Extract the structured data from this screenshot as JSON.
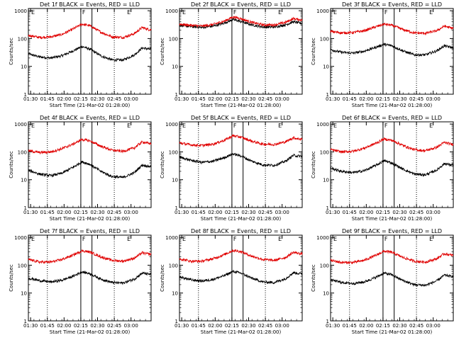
{
  "colors": {
    "events": "#000000",
    "lld": "#e00000",
    "axis": "#000000"
  },
  "panel_common": {
    "ylabel": "Counts/sec",
    "xlabel": "Start Time (21-Mar-02 01:28:00)",
    "x_tick_labels": [
      "01:30",
      "01:45",
      "02:00",
      "02:15",
      "02:30",
      "02:45",
      "03:00"
    ],
    "y_tick_labels": [
      "1",
      "10",
      "100",
      "1000"
    ],
    "markers": [
      "E",
      "F",
      "E"
    ]
  },
  "chart_data": [
    {
      "type": "line",
      "title": "Det 1f BLACK = Events, RED = LLD",
      "x_range_min": [
        0,
        110
      ],
      "ylim": [
        1,
        1200
      ],
      "y_scale": "log",
      "dotted_vlines_min": [
        17,
        77
      ],
      "solid_vlines_min": [
        47,
        57
      ],
      "series": [
        {
          "name": "Events",
          "color": "#000000",
          "x_min": [
            0,
            10,
            20,
            30,
            40,
            48,
            55,
            65,
            75,
            85,
            95,
            102,
            108
          ],
          "values": [
            28,
            22,
            20,
            24,
            36,
            52,
            42,
            24,
            17,
            17,
            26,
            46,
            42
          ]
        },
        {
          "name": "LLD",
          "color": "#e00000",
          "x_min": [
            0,
            10,
            20,
            30,
            40,
            48,
            55,
            65,
            75,
            85,
            95,
            102,
            108
          ],
          "values": [
            130,
            110,
            115,
            140,
            220,
            330,
            290,
            170,
            115,
            110,
            150,
            250,
            210
          ]
        }
      ]
    },
    {
      "type": "line",
      "title": "Det 2f BLACK = Events, RED = LLD",
      "x_range_min": [
        0,
        110
      ],
      "ylim": [
        1,
        1200
      ],
      "y_scale": "log",
      "dotted_vlines_min": [
        17,
        77
      ],
      "solid_vlines_min": [
        47,
        57
      ],
      "series": [
        {
          "name": "Events",
          "color": "#000000",
          "x_min": [
            0,
            10,
            20,
            30,
            40,
            48,
            55,
            65,
            75,
            85,
            95,
            102,
            108
          ],
          "values": [
            300,
            270,
            250,
            280,
            360,
            480,
            410,
            310,
            260,
            260,
            310,
            400,
            360
          ]
        },
        {
          "name": "LLD",
          "color": "#e00000",
          "x_min": [
            0,
            10,
            20,
            30,
            40,
            48,
            55,
            65,
            75,
            85,
            95,
            102,
            108
          ],
          "values": [
            330,
            300,
            280,
            320,
            420,
            600,
            520,
            380,
            310,
            310,
            380,
            520,
            470
          ]
        }
      ]
    },
    {
      "type": "line",
      "title": "Det 3f BLACK = Events, RED = LLD",
      "x_range_min": [
        0,
        110
      ],
      "ylim": [
        1,
        1200
      ],
      "y_scale": "log",
      "dotted_vlines_min": [
        17,
        77
      ],
      "solid_vlines_min": [
        47,
        57
      ],
      "series": [
        {
          "name": "Events",
          "color": "#000000",
          "x_min": [
            0,
            10,
            20,
            30,
            40,
            48,
            55,
            65,
            75,
            85,
            95,
            102,
            108
          ],
          "values": [
            40,
            32,
            30,
            35,
            48,
            62,
            55,
            36,
            26,
            26,
            36,
            55,
            48
          ]
        },
        {
          "name": "LLD",
          "color": "#e00000",
          "x_min": [
            0,
            10,
            20,
            30,
            40,
            48,
            55,
            65,
            75,
            85,
            95,
            102,
            108
          ],
          "values": [
            180,
            160,
            165,
            190,
            260,
            330,
            300,
            210,
            160,
            155,
            190,
            280,
            240
          ]
        }
      ]
    },
    {
      "type": "line",
      "title": "Det 4f BLACK = Events, RED = LLD",
      "x_range_min": [
        0,
        110
      ],
      "ylim": [
        1,
        1200
      ],
      "y_scale": "log",
      "dotted_vlines_min": [
        17,
        77
      ],
      "solid_vlines_min": [
        47,
        57
      ],
      "series": [
        {
          "name": "Events",
          "color": "#000000",
          "x_min": [
            0,
            10,
            20,
            30,
            40,
            48,
            55,
            65,
            75,
            85,
            95,
            102,
            108
          ],
          "values": [
            22,
            16,
            14,
            17,
            28,
            44,
            36,
            20,
            13,
            12,
            18,
            34,
            30
          ]
        },
        {
          "name": "LLD",
          "color": "#e00000",
          "x_min": [
            0,
            10,
            20,
            30,
            40,
            48,
            55,
            65,
            75,
            85,
            95,
            102,
            108
          ],
          "values": [
            110,
            95,
            100,
            130,
            190,
            280,
            250,
            160,
            115,
            105,
            140,
            230,
            200
          ]
        }
      ]
    },
    {
      "type": "line",
      "title": "Det 5f BLACK = Events, RED = LLD",
      "x_range_min": [
        0,
        110
      ],
      "ylim": [
        1,
        1200
      ],
      "y_scale": "log",
      "dotted_vlines_min": [
        17,
        77
      ],
      "solid_vlines_min": [
        47,
        57
      ],
      "series": [
        {
          "name": "Events",
          "color": "#000000",
          "x_min": [
            0,
            10,
            20,
            30,
            40,
            48,
            55,
            65,
            75,
            85,
            95,
            102,
            108
          ],
          "values": [
            65,
            50,
            42,
            46,
            62,
            85,
            72,
            46,
            34,
            33,
            46,
            75,
            70
          ]
        },
        {
          "name": "LLD",
          "color": "#e00000",
          "x_min": [
            0,
            10,
            20,
            30,
            40,
            48,
            55,
            65,
            75,
            85,
            95,
            102,
            108
          ],
          "values": [
            210,
            180,
            170,
            190,
            260,
            380,
            340,
            240,
            190,
            185,
            230,
            320,
            290
          ]
        }
      ]
    },
    {
      "type": "line",
      "title": "Det 6f BLACK = Events, RED = LLD",
      "x_range_min": [
        0,
        110
      ],
      "ylim": [
        1,
        1200
      ],
      "y_scale": "log",
      "dotted_vlines_min": [
        17,
        77
      ],
      "solid_vlines_min": [
        47,
        57
      ],
      "series": [
        {
          "name": "Events",
          "color": "#000000",
          "x_min": [
            0,
            10,
            20,
            30,
            40,
            48,
            55,
            65,
            75,
            85,
            95,
            102,
            108
          ],
          "values": [
            26,
            20,
            18,
            21,
            32,
            48,
            40,
            24,
            16,
            15,
            22,
            38,
            34
          ]
        },
        {
          "name": "LLD",
          "color": "#e00000",
          "x_min": [
            0,
            10,
            20,
            30,
            40,
            48,
            55,
            65,
            75,
            85,
            95,
            102,
            108
          ],
          "values": [
            120,
            100,
            105,
            135,
            200,
            290,
            260,
            170,
            120,
            110,
            145,
            220,
            190
          ]
        }
      ]
    },
    {
      "type": "line",
      "title": "Det 7f BLACK = Events, RED = LLD",
      "x_range_min": [
        0,
        110
      ],
      "ylim": [
        1,
        1200
      ],
      "y_scale": "log",
      "dotted_vlines_min": [
        17,
        77
      ],
      "solid_vlines_min": [
        47,
        57
      ],
      "series": [
        {
          "name": "Events",
          "color": "#000000",
          "x_min": [
            0,
            10,
            20,
            30,
            40,
            48,
            55,
            65,
            75,
            85,
            95,
            102,
            108
          ],
          "values": [
            35,
            28,
            25,
            29,
            40,
            58,
            50,
            32,
            24,
            23,
            32,
            52,
            48
          ]
        },
        {
          "name": "LLD",
          "color": "#e00000",
          "x_min": [
            0,
            10,
            20,
            30,
            40,
            48,
            55,
            65,
            75,
            85,
            95,
            102,
            108
          ],
          "values": [
            160,
            130,
            130,
            160,
            230,
            330,
            300,
            200,
            150,
            140,
            180,
            280,
            250
          ]
        }
      ]
    },
    {
      "type": "line",
      "title": "Det 8f BLACK = Events, RED = LLD",
      "x_range_min": [
        0,
        110
      ],
      "ylim": [
        1,
        1200
      ],
      "y_scale": "log",
      "dotted_vlines_min": [
        17,
        77
      ],
      "solid_vlines_min": [
        47,
        57
      ],
      "series": [
        {
          "name": "Events",
          "color": "#000000",
          "x_min": [
            0,
            10,
            20,
            30,
            40,
            48,
            55,
            65,
            75,
            85,
            95,
            102,
            108
          ],
          "values": [
            38,
            30,
            27,
            31,
            42,
            60,
            52,
            34,
            25,
            24,
            33,
            54,
            50
          ]
        },
        {
          "name": "LLD",
          "color": "#e00000",
          "x_min": [
            0,
            10,
            20,
            30,
            40,
            48,
            55,
            65,
            75,
            85,
            95,
            102,
            108
          ],
          "values": [
            170,
            140,
            140,
            170,
            240,
            340,
            310,
            210,
            160,
            150,
            190,
            290,
            260
          ]
        }
      ]
    },
    {
      "type": "line",
      "title": "Det 9f BLACK = Events, RED = LLD",
      "x_range_min": [
        0,
        110
      ],
      "ylim": [
        1,
        1200
      ],
      "y_scale": "log",
      "dotted_vlines_min": [
        17,
        77
      ],
      "solid_vlines_min": [
        47,
        57
      ],
      "series": [
        {
          "name": "Events",
          "color": "#000000",
          "x_min": [
            0,
            10,
            20,
            30,
            40,
            48,
            55,
            65,
            75,
            85,
            95,
            102,
            108
          ],
          "values": [
            30,
            24,
            22,
            25,
            36,
            52,
            45,
            28,
            20,
            19,
            27,
            44,
            40
          ]
        },
        {
          "name": "LLD",
          "color": "#e00000",
          "x_min": [
            0,
            10,
            20,
            30,
            40,
            48,
            55,
            65,
            75,
            85,
            95,
            102,
            108
          ],
          "values": [
            150,
            125,
            125,
            150,
            220,
            320,
            290,
            190,
            140,
            130,
            170,
            260,
            230
          ]
        }
      ]
    }
  ]
}
